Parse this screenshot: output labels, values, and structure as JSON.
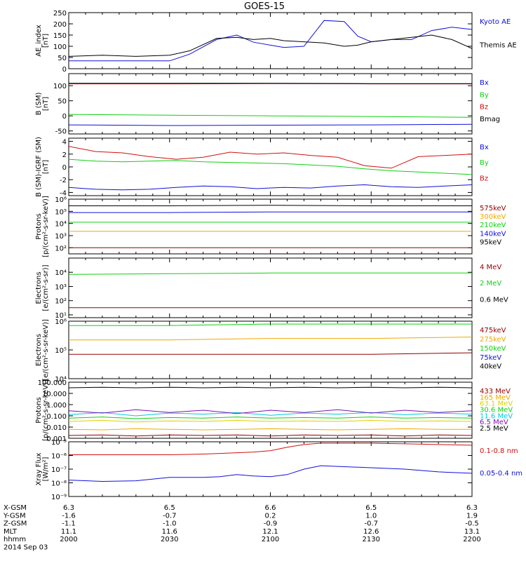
{
  "title": "GOES-15",
  "colors": {
    "black": "#000000",
    "blue": "#1010d8",
    "green": "#10d010",
    "red": "#d01010",
    "orange": "#f0a800",
    "yellow": "#e0d000",
    "cyan": "#00c8e0",
    "purple": "#8010b0",
    "darkred": "#900000"
  },
  "time_axis": {
    "rows": [
      {
        "label": "X-GSM",
        "values": [
          "6.3",
          "6.5",
          "6.6",
          "6.5",
          "6.3"
        ]
      },
      {
        "label": "Y-GSM",
        "values": [
          "-1.6",
          "-0.7",
          "0.2",
          "1.0",
          "1.9"
        ]
      },
      {
        "label": "Z-GSM",
        "values": [
          "-1.1",
          "-1.0",
          "-0.9",
          "-0.7",
          "-0.5"
        ]
      },
      {
        "label": "MLT",
        "values": [
          "11.1",
          "11.6",
          "12.1",
          "12.6",
          "13.1"
        ]
      },
      {
        "label": "hhmm",
        "values": [
          "2000",
          "2030",
          "2100",
          "2130",
          "2200"
        ]
      }
    ],
    "date": "2014 Sep 03"
  },
  "chart_data": [
    {
      "type": "line",
      "ylabel": "AE_index\n[nT]",
      "yscale": "linear",
      "ylim": [
        0,
        250
      ],
      "yticks": [
        {
          "v": 0,
          "t": "0"
        },
        {
          "v": 50,
          "t": "50"
        },
        {
          "v": 100,
          "t": "100"
        },
        {
          "v": 150,
          "t": "150"
        },
        {
          "v": 200,
          "t": "200"
        },
        {
          "v": 250,
          "t": "250"
        }
      ],
      "x": [
        0,
        10,
        20,
        30,
        36,
        44,
        50,
        55,
        60,
        64,
        70,
        76,
        82,
        86,
        90,
        96,
        102,
        108,
        114,
        120
      ],
      "series": [
        {
          "name": "Kyoto AE",
          "color": "blue",
          "y": [
            35,
            35,
            35,
            35,
            65,
            130,
            150,
            118,
            105,
            95,
            100,
            215,
            210,
            145,
            120,
            130,
            130,
            170,
            185,
            175
          ]
        },
        {
          "name": "Themis AE",
          "color": "black",
          "y": [
            55,
            60,
            55,
            60,
            80,
            135,
            140,
            130,
            135,
            125,
            120,
            115,
            100,
            105,
            120,
            130,
            140,
            150,
            130,
            90
          ]
        }
      ]
    },
    {
      "type": "line",
      "ylabel": "B (SM)\n[nT]",
      "yscale": "linear",
      "ylim": [
        -60,
        140
      ],
      "yticks": [
        {
          "v": -50,
          "t": "-50"
        },
        {
          "v": 0,
          "t": "0"
        },
        {
          "v": 50,
          "t": "50"
        },
        {
          "v": 100,
          "t": "100"
        }
      ],
      "x": [
        0,
        30,
        60,
        90,
        120
      ],
      "series": [
        {
          "name": "Bx",
          "color": "blue",
          "y": [
            -30,
            -32,
            -31,
            -30,
            -28
          ]
        },
        {
          "name": "By",
          "color": "green",
          "y": [
            5,
            2,
            0,
            -2,
            -5
          ]
        },
        {
          "name": "Bz",
          "color": "red",
          "y": [
            106,
            106,
            107,
            106,
            106
          ]
        },
        {
          "name": "Bmag",
          "color": "black",
          "y": [
            108,
            108,
            108,
            107,
            107
          ]
        }
      ]
    },
    {
      "type": "line",
      "ylabel": "B (SM)-IGRF (SM)\n[nT]",
      "yscale": "linear",
      "ylim": [
        -4.5,
        4.5
      ],
      "yticks": [
        {
          "v": -4,
          "t": "-4"
        },
        {
          "v": -2,
          "t": "-2"
        },
        {
          "v": 0,
          "t": "0"
        },
        {
          "v": 2,
          "t": "2"
        },
        {
          "v": 4,
          "t": "4"
        }
      ],
      "x": [
        0,
        8,
        16,
        24,
        32,
        40,
        48,
        56,
        64,
        72,
        80,
        88,
        96,
        104,
        112,
        120
      ],
      "series": [
        {
          "name": "Bx",
          "color": "blue",
          "y": [
            -3.2,
            -3.5,
            -3.6,
            -3.5,
            -3.2,
            -3.0,
            -3.1,
            -3.4,
            -3.2,
            -3.3,
            -3.0,
            -2.8,
            -3.1,
            -3.2,
            -3.0,
            -2.8
          ]
        },
        {
          "name": "By",
          "color": "green",
          "y": [
            1.2,
            0.9,
            0.8,
            0.9,
            1.0,
            0.8,
            0.7,
            0.6,
            0.5,
            0.3,
            0.1,
            -0.3,
            -0.6,
            -0.8,
            -1.0,
            -1.2
          ]
        },
        {
          "name": "Bz",
          "color": "red",
          "y": [
            3.2,
            2.4,
            2.2,
            1.6,
            1.2,
            1.5,
            2.3,
            2.0,
            2.2,
            1.8,
            1.5,
            0.2,
            -0.2,
            1.6,
            1.8,
            2.0
          ]
        }
      ]
    },
    {
      "type": "line",
      "ylabel": "Protons\n[p/(cm²-s-sr-keV)]",
      "yscale": "log",
      "ylim": [
        1.5,
        6
      ],
      "yticks": [
        {
          "v": 2,
          "t": "10²"
        },
        {
          "v": 3,
          "t": "10³"
        },
        {
          "v": 4,
          "t": "10⁴"
        },
        {
          "v": 5,
          "t": "10⁵"
        },
        {
          "v": 6,
          "t": "10⁶"
        }
      ],
      "x": [
        0,
        30,
        60,
        90,
        120
      ],
      "series": [
        {
          "name": "575keV",
          "color": "darkred",
          "y": [
            2.0,
            2.0,
            2.0,
            2.0,
            2.0
          ]
        },
        {
          "name": "300keV",
          "color": "orange",
          "y": [
            3.35,
            3.35,
            3.35,
            3.35,
            3.35
          ]
        },
        {
          "name": "210keV",
          "color": "green",
          "y": [
            4.1,
            4.1,
            4.1,
            4.1,
            4.1
          ]
        },
        {
          "name": "140keV",
          "color": "blue",
          "y": [
            4.9,
            4.9,
            4.95,
            4.95,
            4.95
          ]
        },
        {
          "name": "95keV",
          "color": "black",
          "y": [
            5.45,
            5.45,
            5.5,
            5.45,
            5.45
          ]
        }
      ]
    },
    {
      "type": "line",
      "ylabel": "Electrons\n[e/(cm²-s-sr)]",
      "yscale": "log",
      "ylim": [
        0.8,
        5
      ],
      "yticks": [
        {
          "v": 1,
          "t": "10¹"
        },
        {
          "v": 2,
          "t": "10²"
        },
        {
          "v": 3,
          "t": "10³"
        },
        {
          "v": 4,
          "t": "10⁴"
        }
      ],
      "x": [
        0,
        30,
        60,
        90,
        120
      ],
      "series": [
        {
          "name": "4 MeV",
          "color": "darkred",
          "y": [
            1.5,
            1.5,
            1.5,
            1.5,
            1.5
          ]
        },
        {
          "name": "2 MeV",
          "color": "green",
          "y": [
            3.85,
            3.9,
            3.95,
            3.95,
            3.95
          ]
        },
        {
          "name": "0.6 MeV",
          "color": "black",
          "y": [
            5.0,
            5.0,
            5.0,
            5.0,
            5.0
          ]
        }
      ]
    },
    {
      "type": "line",
      "ylabel": "Electrons\n[e/(cm²-s-sr-keV)]",
      "yscale": "log",
      "ylim": [
        4,
        6
      ],
      "yticks": [
        {
          "v": 4,
          "t": "10⁴"
        },
        {
          "v": 5,
          "t": "10⁵"
        },
        {
          "v": 6,
          "t": "10⁶"
        }
      ],
      "x": [
        0,
        30,
        60,
        90,
        120
      ],
      "series": [
        {
          "name": "475keV",
          "color": "darkred",
          "y": [
            4.85,
            4.85,
            4.85,
            4.85,
            4.9
          ]
        },
        {
          "name": "275keV",
          "color": "orange",
          "y": [
            5.35,
            5.35,
            5.4,
            5.4,
            5.45
          ]
        },
        {
          "name": "150keV",
          "color": "green",
          "y": [
            5.85,
            5.85,
            5.9,
            5.9,
            5.9
          ]
        },
        {
          "name": "75keV",
          "color": "blue",
          "y": [
            6.2,
            6.2,
            6.2,
            6.2,
            6.2
          ]
        },
        {
          "name": "40keV",
          "color": "black",
          "y": [
            6.4,
            6.4,
            6.4,
            6.4,
            6.4
          ]
        }
      ]
    },
    {
      "type": "line",
      "ylabel": "Protons\n[p/(cm²-s-sr-keV)]",
      "yscale": "log",
      "ylim": [
        -3,
        2
      ],
      "yticks": [
        {
          "v": -3,
          "t": "0.001"
        },
        {
          "v": -2,
          "t": "0.010"
        },
        {
          "v": -1,
          "t": "0.100"
        },
        {
          "v": 0,
          "t": "1.000"
        },
        {
          "v": 1,
          "t": "10.000"
        },
        {
          "v": 2,
          "t": "100.000"
        }
      ],
      "x": [
        0,
        10,
        20,
        30,
        40,
        50,
        60,
        70,
        80,
        90,
        100,
        110,
        120
      ],
      "series": [
        {
          "name": "433 MeV",
          "color": "darkred",
          "y": [
            -2.75,
            -2.7,
            -2.8,
            -2.7,
            -2.75,
            -2.7,
            -2.8,
            -2.7,
            -2.75,
            -2.7,
            -2.8,
            -2.7,
            -2.75
          ]
        },
        {
          "name": "165 MeV",
          "color": "orange",
          "y": [
            -2.2,
            -2.25,
            -2.15,
            -2.2,
            -2.25,
            -2.2,
            -2.15,
            -2.2,
            -2.25,
            -2.2,
            -2.15,
            -2.2,
            -2.2
          ]
        },
        {
          "name": "63.1 MeV",
          "color": "yellow",
          "y": [
            -1.5,
            -1.4,
            -1.55,
            -1.45,
            -1.5,
            -1.4,
            -1.5,
            -1.45,
            -1.5,
            -1.4,
            -1.5,
            -1.45,
            -1.5
          ]
        },
        {
          "name": "30.6 MeV",
          "color": "green",
          "y": [
            -1.2,
            -1.1,
            -1.25,
            -1.15,
            -1.2,
            -1.1,
            -1.2,
            -1.15,
            -1.2,
            -1.1,
            -1.2,
            -1.15,
            -1.2
          ]
        },
        {
          "name": "11.6 MeV",
          "color": "cyan",
          "y": [
            -0.9,
            -0.7,
            -1.0,
            -0.75,
            -0.85,
            -0.7,
            -0.95,
            -0.75,
            -0.85,
            -0.7,
            -0.9,
            -0.75,
            -0.85
          ]
        },
        {
          "name": "6.5 MeV",
          "color": "purple",
          "y": [
            -0.55,
            -0.75,
            -0.45,
            -0.7,
            -0.5,
            -0.8,
            -0.5,
            -0.7,
            -0.45,
            -0.75,
            -0.5,
            -0.7,
            -0.55
          ]
        },
        {
          "name": "2.5 MeV",
          "color": "black",
          "y": [
            1.5,
            1.55,
            1.5,
            1.55,
            1.5,
            1.55,
            1.5,
            1.55,
            1.5,
            1.55,
            1.5,
            1.55,
            1.5
          ]
        }
      ]
    },
    {
      "type": "line",
      "ylabel": "Xray Flux\n[W/m²]",
      "yscale": "log",
      "ylim": [
        -9,
        -5
      ],
      "yticks": [
        {
          "v": -9,
          "t": "10⁻⁹"
        },
        {
          "v": -8,
          "t": "10⁻⁸"
        },
        {
          "v": -7,
          "t": "10⁻⁷"
        },
        {
          "v": -6,
          "t": "10⁻⁶"
        },
        {
          "v": -5,
          "t": "10⁻⁵"
        }
      ],
      "x": [
        0,
        10,
        20,
        30,
        40,
        45,
        50,
        55,
        60,
        65,
        70,
        75,
        80,
        90,
        100,
        110,
        120
      ],
      "series": [
        {
          "name": "0.1-0.8 nm",
          "color": "red",
          "y": [
            -5.95,
            -5.95,
            -5.95,
            -5.95,
            -5.9,
            -5.85,
            -5.8,
            -5.75,
            -5.65,
            -5.4,
            -5.2,
            -5.1,
            -5.1,
            -5.1,
            -5.15,
            -5.2,
            -5.25
          ]
        },
        {
          "name": "0.05-0.4 nm",
          "color": "blue",
          "y": [
            -7.8,
            -7.9,
            -7.85,
            -7.6,
            -7.6,
            -7.55,
            -7.4,
            -7.5,
            -7.55,
            -7.4,
            -7.0,
            -6.75,
            -6.8,
            -6.9,
            -7.0,
            -7.2,
            -7.3
          ]
        }
      ]
    }
  ]
}
